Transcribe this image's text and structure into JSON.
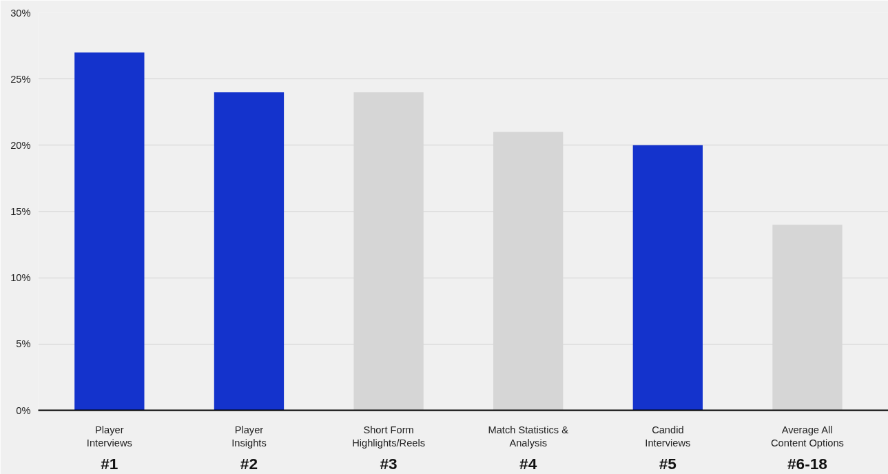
{
  "chart_data": {
    "type": "bar",
    "categories": [
      "Player\nInterviews",
      "Player\nInsights",
      "Short Form\nHighlights/Reels",
      "Match Statistics &\nAnalysis",
      "Candid\nInterviews",
      "Average All\nContent Options"
    ],
    "values": [
      27,
      24,
      24,
      21,
      20,
      14
    ],
    "colors": [
      "#1433cc",
      "#1433cc",
      "#d6d6d6",
      "#d6d6d6",
      "#1433cc",
      "#d6d6d6"
    ],
    "ylim": [
      0,
      30
    ],
    "yticks": [
      {
        "value": 0,
        "label": "0%"
      },
      {
        "value": 5,
        "label": "5%"
      },
      {
        "value": 10,
        "label": "10%"
      },
      {
        "value": 15,
        "label": "15%"
      },
      {
        "value": 20,
        "label": "20%"
      },
      {
        "value": 25,
        "label": "25%"
      },
      {
        "value": 30,
        "label": "30%"
      }
    ],
    "annotations": [
      "#1",
      "#2",
      "#3",
      "#4",
      "#5",
      "#6-18"
    ],
    "grid": "y"
  }
}
